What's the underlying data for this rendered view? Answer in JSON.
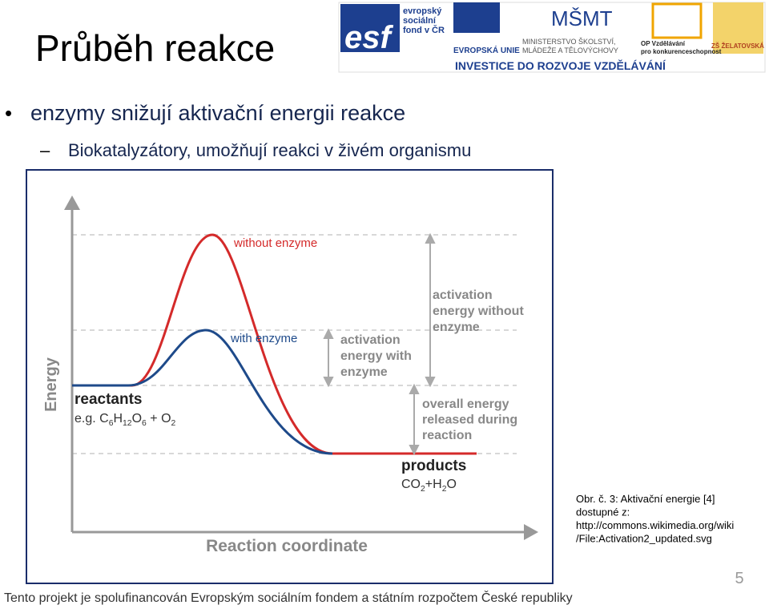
{
  "slide": {
    "title": "Průběh reakce",
    "bullets": [
      {
        "marker": "•",
        "text": "enzymy snižují aktivační energii reakce"
      },
      {
        "marker": "–",
        "text": "Biokatalyzátory, umožňují reakci  v živém organismu"
      }
    ],
    "logos": {
      "esf": "esf",
      "esf_text": [
        "evropský",
        "sociální",
        "fond v ČR"
      ],
      "eu": "EVROPSKÁ UNIE",
      "msmt": "MŠMT",
      "msmt_text": [
        "MINISTERSTVO ŠKOLSTVÍ,",
        "MLÁDEŽE A TĚLOVÝCHOVY"
      ],
      "op": [
        "OP Vzdělávání",
        "pro konkurenceschopnost"
      ],
      "school": "ZŠ ŽELATOVSKÁ",
      "banner": "INVESTICE DO ROZVOJE VZDĚLÁVÁNÍ"
    },
    "diagram": {
      "y_axis": "Energy",
      "x_axis": "Reaction coordinate",
      "without_enzyme": "without enzyme",
      "with_enzyme": "with enzyme",
      "activation_with": [
        "activation",
        "energy with",
        "enzyme"
      ],
      "activation_without": [
        "activation",
        "energy without",
        "enzyme"
      ],
      "overall": [
        "overall energy",
        "released during",
        "reaction"
      ],
      "reactants": "reactants",
      "reactants_formula": [
        "e.g. C",
        "6",
        "H",
        "12",
        "O",
        "6",
        " + O",
        "2"
      ],
      "products": "products",
      "products_formula": [
        "CO",
        "2",
        "+H",
        "2",
        "O"
      ]
    },
    "caption": [
      "Obr. č. 3: Aktivační energie [4]",
      "dostupné z:",
      "http://commons.wikimedia.org/wiki",
      "/File:Activation2_updated.svg"
    ],
    "footer": "Tento projekt je spolufinancován Evropským sociálním fondem a státním rozpočtem České republiky",
    "page_number": "5"
  }
}
